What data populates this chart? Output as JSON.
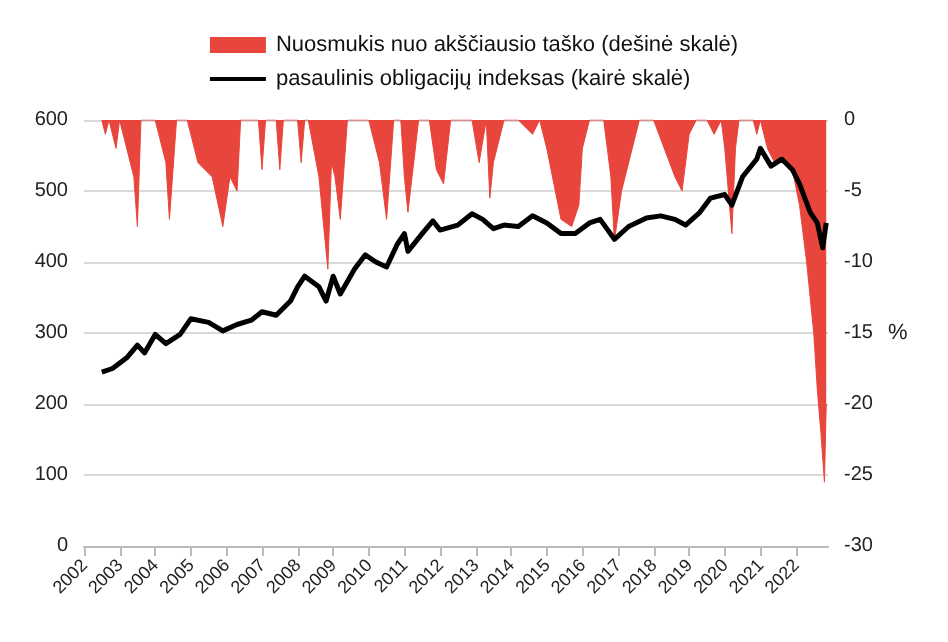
{
  "chart_data": {
    "type": "line",
    "y2label": "%",
    "xlim": [
      2002,
      2022.9
    ],
    "xticks": [
      2002,
      2003,
      2004,
      2005,
      2006,
      2007,
      2008,
      2009,
      2010,
      2011,
      2012,
      2013,
      2014,
      2015,
      2016,
      2017,
      2018,
      2019,
      2020,
      2021,
      2022
    ],
    "ylim": [
      0,
      600
    ],
    "yticks": [
      0,
      100,
      200,
      300,
      400,
      500,
      600
    ],
    "y2lim": [
      -30,
      0
    ],
    "y2ticks": [
      -30,
      -25,
      -20,
      -15,
      -10,
      -5,
      0
    ],
    "grid": "y",
    "legend": "top",
    "marker": "none",
    "series": [
      {
        "name": "Nuosmukis nuo akščiausio taško (dešinė skalė)",
        "type": "area",
        "axis": "y2",
        "color": "#e8453c",
        "x": [
          2002.5,
          2002.6,
          2002.7,
          2002.9,
          2003.0,
          2003.4,
          2003.5,
          2003.6,
          2004.0,
          2004.3,
          2004.4,
          2004.6,
          2004.9,
          2005.2,
          2005.6,
          2005.9,
          2006.1,
          2006.3,
          2006.4,
          2006.9,
          2007.0,
          2007.1,
          2007.4,
          2007.5,
          2007.6,
          2008.0,
          2008.1,
          2008.2,
          2008.3,
          2008.6,
          2008.85,
          2008.95,
          2009.05,
          2009.2,
          2009.4,
          2010.0,
          2010.3,
          2010.5,
          2010.7,
          2010.9,
          2011.0,
          2011.1,
          2011.4,
          2011.7,
          2011.9,
          2012.1,
          2012.3,
          2012.9,
          2013.1,
          2013.3,
          2013.4,
          2013.5,
          2013.8,
          2014.2,
          2014.6,
          2014.8,
          2015.0,
          2015.4,
          2015.7,
          2015.9,
          2016.0,
          2016.2,
          2016.6,
          2016.8,
          2016.9,
          2017.1,
          2017.4,
          2017.6,
          2018.0,
          2018.3,
          2018.6,
          2018.8,
          2019.0,
          2019.2,
          2019.5,
          2019.7,
          2019.9,
          2020.0,
          2020.2,
          2020.3,
          2020.4,
          2020.8,
          2020.9,
          2021.0,
          2021.2,
          2021.4,
          2021.6,
          2021.9,
          2022.1,
          2022.3,
          2022.5,
          2022.6,
          2022.7,
          2022.8,
          2022.85
        ],
        "values": [
          0,
          -1,
          0,
          -2,
          0,
          -4,
          -7.5,
          0,
          0,
          -3,
          -7,
          0,
          0,
          -3,
          -4,
          -7.5,
          -4,
          -5,
          0,
          0,
          -3.5,
          0,
          0,
          -3.5,
          0,
          0,
          -3,
          0,
          0,
          -4,
          -10.5,
          -3,
          -4,
          -7,
          0,
          0,
          -3,
          -7,
          0,
          0,
          -4,
          -6.5,
          0,
          0,
          -3.5,
          -4.5,
          0,
          0,
          -3,
          0,
          -5.5,
          -3,
          0,
          0,
          -1,
          0,
          -2,
          -7,
          -7.5,
          -6,
          -2,
          0,
          0,
          -4,
          -8.5,
          -5,
          -2,
          0,
          0,
          -2,
          -4,
          -5,
          -1,
          0,
          0,
          -1,
          0,
          -2,
          -8,
          -2,
          0,
          0,
          -1,
          0,
          -2,
          -3,
          -2.5,
          -3.5,
          -6,
          -10,
          -15,
          -19,
          -22,
          -25.5,
          -20
        ]
      },
      {
        "name": "pasaulinis obligacijų indeksas (kairė skalė)",
        "color": "#000000",
        "x": [
          2002.5,
          2002.8,
          2003.2,
          2003.5,
          2003.7,
          2004.0,
          2004.3,
          2004.7,
          2005.0,
          2005.5,
          2005.9,
          2006.3,
          2006.7,
          2007.0,
          2007.4,
          2007.8,
          2008.0,
          2008.2,
          2008.6,
          2008.8,
          2009.0,
          2009.2,
          2009.6,
          2009.9,
          2010.2,
          2010.5,
          2010.8,
          2011.0,
          2011.1,
          2011.5,
          2011.8,
          2012.0,
          2012.5,
          2012.9,
          2013.2,
          2013.5,
          2013.8,
          2014.2,
          2014.6,
          2015.0,
          2015.4,
          2015.8,
          2016.2,
          2016.5,
          2016.9,
          2017.3,
          2017.8,
          2018.2,
          2018.6,
          2018.9,
          2019.3,
          2019.6,
          2020.0,
          2020.2,
          2020.5,
          2020.9,
          2021.0,
          2021.3,
          2021.6,
          2021.9,
          2022.1,
          2022.4,
          2022.6,
          2022.75,
          2022.85
        ],
        "values": [
          245,
          250,
          265,
          283,
          272,
          298,
          285,
          298,
          320,
          315,
          303,
          312,
          318,
          330,
          325,
          345,
          365,
          380,
          365,
          345,
          380,
          355,
          390,
          410,
          400,
          393,
          425,
          440,
          415,
          440,
          458,
          445,
          452,
          468,
          460,
          447,
          452,
          450,
          465,
          455,
          440,
          440,
          455,
          460,
          432,
          450,
          462,
          465,
          460,
          452,
          470,
          490,
          495,
          480,
          520,
          545,
          560,
          535,
          545,
          530,
          510,
          470,
          455,
          420,
          455
        ]
      }
    ]
  }
}
